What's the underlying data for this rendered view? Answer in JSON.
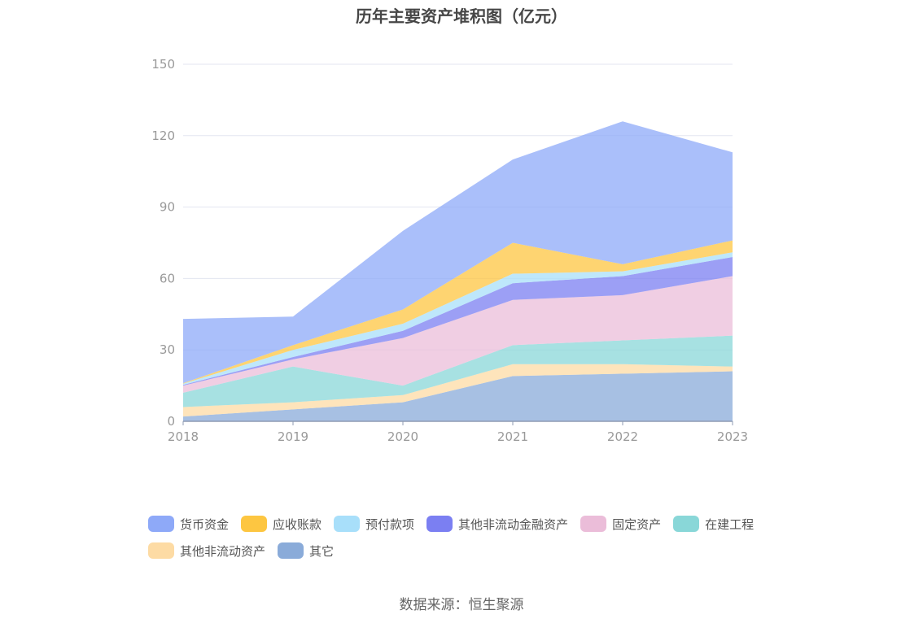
{
  "title": "历年主要资产堆积图（亿元）",
  "source": "数据来源：恒生聚源",
  "colors": {
    "货币资金": "#8ea9f8",
    "应收账款": "#fdc641",
    "预付款项": "#a8dffa",
    "其他非流动金融资产": "#7b7ff2",
    "固定资产": "#ebbdd9",
    "在建工程": "#89d7d8",
    "其他非流动资产": "#fddba4",
    "其它": "#8aabd9"
  },
  "chart_data": {
    "type": "area",
    "stacked": true,
    "title": "历年主要资产堆积图（亿元）",
    "categories": [
      "2018",
      "2019",
      "2020",
      "2021",
      "2022",
      "2023"
    ],
    "ylim": [
      0,
      150
    ],
    "yticks": [
      0,
      30,
      60,
      90,
      120,
      150
    ],
    "grid": true,
    "legend_position": "bottom",
    "series": [
      {
        "name": "其它",
        "values": [
          2,
          5,
          8,
          19,
          20,
          21
        ]
      },
      {
        "name": "其他非流动资产",
        "values": [
          4,
          3,
          3,
          5,
          4,
          2
        ]
      },
      {
        "name": "在建工程",
        "values": [
          6,
          15,
          4,
          8,
          10,
          13
        ]
      },
      {
        "name": "固定资产",
        "values": [
          3,
          3,
          20,
          19,
          19,
          25
        ]
      },
      {
        "name": "其他非流动金融资产",
        "values": [
          0.3,
          1,
          3,
          7,
          8,
          8
        ]
      },
      {
        "name": "预付款项",
        "values": [
          0.5,
          3,
          3,
          4,
          2,
          2
        ]
      },
      {
        "name": "应收账款",
        "values": [
          0.2,
          2,
          6,
          13,
          3,
          5
        ]
      },
      {
        "name": "货币资金",
        "values": [
          27,
          12,
          33,
          35,
          60,
          37
        ]
      }
    ]
  },
  "legend": {
    "row1": [
      "货币资金",
      "应收账款",
      "预付款项",
      "其他非流动金融资产",
      "固定资产",
      "在建工程"
    ],
    "row2": [
      "其他非流动资产",
      "其它"
    ]
  }
}
